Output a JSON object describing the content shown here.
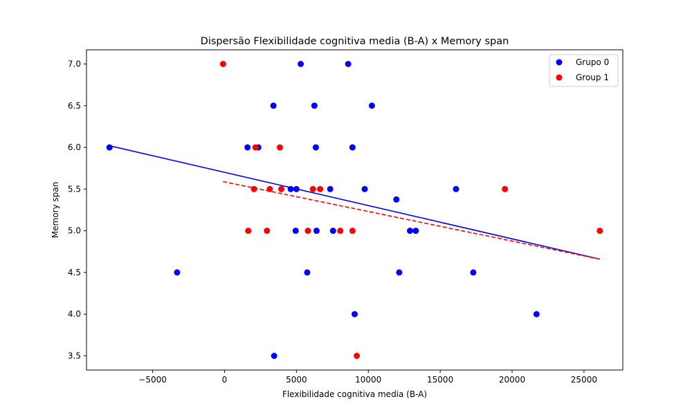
{
  "chart_data": {
    "type": "scatter",
    "title": "Dispersão Flexibilidade cognitiva media (B-A) x Memory span",
    "xlabel": "Flexibilidade cognitiva media (B-A)",
    "ylabel": "Memory span",
    "xlim": [
      -9600,
      27700
    ],
    "ylim": [
      3.33,
      7.17
    ],
    "xticks": [
      -5000,
      0,
      5000,
      10000,
      15000,
      20000,
      25000
    ],
    "xtick_labels": [
      "−5000",
      "0",
      "5000",
      "10000",
      "15000",
      "20000",
      "25000"
    ],
    "yticks": [
      3.5,
      4.0,
      4.5,
      5.0,
      5.5,
      6.0,
      6.5,
      7.0
    ],
    "ytick_labels": [
      "3.5",
      "4.0",
      "4.5",
      "5.0",
      "5.5",
      "6.0",
      "6.5",
      "7.0"
    ],
    "grid": false,
    "legend_position": "top-right",
    "series": [
      {
        "name": "Grupo 0",
        "color": "#0000ff",
        "points": [
          [
            -8000,
            6.0
          ],
          [
            -3300,
            4.5
          ],
          [
            1600,
            6.0
          ],
          [
            2350,
            6.0
          ],
          [
            3400,
            6.5
          ],
          [
            3450,
            3.5
          ],
          [
            4600,
            5.5
          ],
          [
            4950,
            5.0
          ],
          [
            5000,
            5.5
          ],
          [
            5300,
            7.0
          ],
          [
            5750,
            4.5
          ],
          [
            6250,
            6.5
          ],
          [
            6350,
            6.0
          ],
          [
            6400,
            5.0
          ],
          [
            7350,
            5.5
          ],
          [
            7550,
            5.0
          ],
          [
            8600,
            7.0
          ],
          [
            8900,
            6.0
          ],
          [
            9050,
            4.0
          ],
          [
            9750,
            5.5
          ],
          [
            10250,
            6.5
          ],
          [
            11950,
            5.375
          ],
          [
            12150,
            4.5
          ],
          [
            12900,
            5.0
          ],
          [
            13300,
            5.0
          ],
          [
            16100,
            5.5
          ],
          [
            17300,
            4.5
          ],
          [
            21700,
            4.0
          ]
        ],
        "fit_line": [
          [
            -8000,
            6.02
          ],
          [
            26100,
            4.66
          ]
        ],
        "fit_style": "solid"
      },
      {
        "name": "Group 1",
        "color": "#ff0000",
        "points": [
          [
            -100,
            7.0
          ],
          [
            1650,
            5.0
          ],
          [
            2050,
            5.5
          ],
          [
            2150,
            6.0
          ],
          [
            2950,
            5.0
          ],
          [
            3150,
            5.5
          ],
          [
            3850,
            6.0
          ],
          [
            3950,
            5.5
          ],
          [
            5800,
            5.0
          ],
          [
            6150,
            5.5
          ],
          [
            6650,
            5.5
          ],
          [
            8050,
            5.0
          ],
          [
            8900,
            5.0
          ],
          [
            9200,
            3.5
          ],
          [
            19500,
            5.5
          ],
          [
            26100,
            5.0
          ]
        ],
        "fit_line": [
          [
            -100,
            5.59
          ],
          [
            26100,
            4.66
          ]
        ],
        "fit_style": "dashed"
      }
    ]
  }
}
